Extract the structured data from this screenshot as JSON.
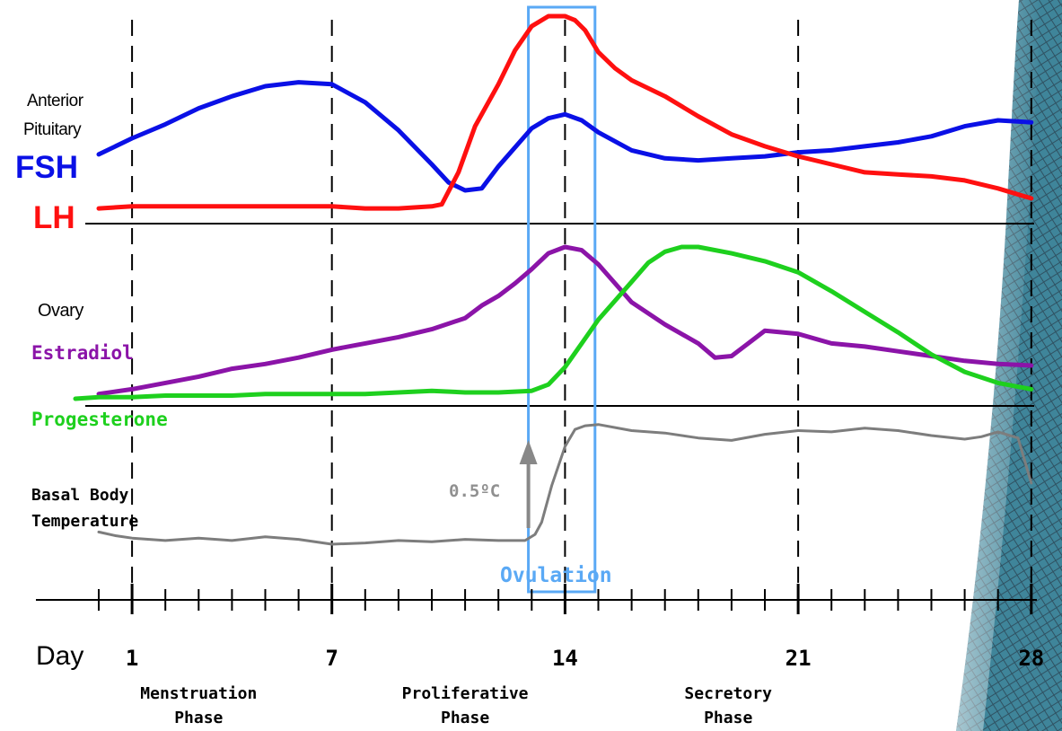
{
  "chart_data": {
    "type": "line",
    "x_unit": "day",
    "x_range": [
      0,
      28
    ],
    "day_label": "Day",
    "tick_labels": [
      {
        "day": 1,
        "text": "1"
      },
      {
        "day": 7,
        "text": "7"
      },
      {
        "day": 14,
        "text": "14"
      },
      {
        "day": 21,
        "text": "21"
      },
      {
        "day": 28,
        "text": "28"
      }
    ],
    "phases": [
      {
        "day": 3,
        "line1": "Menstruation",
        "line2": "Phase"
      },
      {
        "day": 11,
        "line1": "Proliferative",
        "line2": "Phase"
      },
      {
        "day": 18.9,
        "line1": "Secretory",
        "line2": "Phase"
      }
    ],
    "ovulation": {
      "label": "Ovulation",
      "day_start": 12.9,
      "day_end": 14.9,
      "color": "#5aa9f5"
    },
    "panels": [
      {
        "name": "Anterior Pituitary",
        "label_lines": [
          "Anterior",
          "Pituitary"
        ],
        "series": [
          {
            "name": "FSH",
            "color": "#0a10e6",
            "x": [
              0,
              1,
              2,
              3,
              4,
              5,
              6,
              7,
              8,
              9,
              10,
              10.5,
              11,
              11.5,
              12,
              13,
              13.5,
              14,
              14.5,
              15,
              16,
              17,
              18,
              19,
              20,
              21,
              22,
              23,
              24,
              25,
              26,
              27,
              28
            ],
            "y": [
              0.31,
              0.39,
              0.46,
              0.54,
              0.6,
              0.65,
              0.67,
              0.66,
              0.57,
              0.43,
              0.26,
              0.17,
              0.13,
              0.14,
              0.25,
              0.44,
              0.49,
              0.51,
              0.48,
              0.42,
              0.33,
              0.29,
              0.28,
              0.29,
              0.3,
              0.32,
              0.33,
              0.35,
              0.37,
              0.4,
              0.45,
              0.48,
              0.47
            ]
          },
          {
            "name": "LH",
            "color": "#ff1010",
            "x": [
              0,
              1,
              2,
              3,
              4,
              5,
              6,
              7,
              8,
              9,
              10,
              10.3,
              10.8,
              11.3,
              12,
              12.5,
              13,
              13.5,
              14,
              14.3,
              14.6,
              15,
              15.5,
              16,
              17,
              18,
              19,
              20,
              21,
              22,
              23,
              24,
              25,
              26,
              27,
              28
            ],
            "y": [
              0.04,
              0.05,
              0.05,
              0.05,
              0.05,
              0.05,
              0.05,
              0.05,
              0.04,
              0.04,
              0.05,
              0.06,
              0.22,
              0.45,
              0.66,
              0.83,
              0.95,
              1.0,
              1.0,
              0.98,
              0.93,
              0.82,
              0.74,
              0.68,
              0.6,
              0.5,
              0.41,
              0.35,
              0.3,
              0.26,
              0.22,
              0.21,
              0.2,
              0.18,
              0.14,
              0.09
            ]
          }
        ]
      },
      {
        "name": "Ovary",
        "label_lines": [
          "Ovary"
        ],
        "series": [
          {
            "name": "Estradiol",
            "color": "#8b14a8",
            "x": [
              0,
              1,
              2,
              3,
              4,
              5,
              6,
              7,
              8,
              9,
              10,
              11,
              11.5,
              12,
              12.5,
              13,
              13.5,
              14,
              14.5,
              15,
              15.5,
              16,
              17,
              18,
              18.5,
              19,
              19.5,
              20,
              21,
              22,
              23,
              24,
              25,
              26,
              27,
              28
            ],
            "y": [
              0.03,
              0.06,
              0.1,
              0.14,
              0.19,
              0.22,
              0.26,
              0.31,
              0.35,
              0.39,
              0.44,
              0.51,
              0.59,
              0.65,
              0.73,
              0.82,
              0.92,
              0.96,
              0.94,
              0.85,
              0.73,
              0.61,
              0.47,
              0.35,
              0.26,
              0.27,
              0.35,
              0.43,
              0.41,
              0.35,
              0.33,
              0.3,
              0.27,
              0.24,
              0.22,
              0.21
            ]
          },
          {
            "name": "Progesterone",
            "color": "#1ed01e",
            "x": [
              -0.7,
              0,
              1,
              2,
              3,
              4,
              5,
              6,
              7,
              8,
              9,
              10,
              11,
              12,
              13,
              13.5,
              14,
              14.5,
              15,
              15.5,
              16,
              16.5,
              17,
              17.5,
              18,
              19,
              20,
              21,
              22,
              23,
              24,
              25,
              26,
              27,
              28
            ],
            "y": [
              0.0,
              0.01,
              0.01,
              0.02,
              0.02,
              0.02,
              0.03,
              0.03,
              0.03,
              0.03,
              0.04,
              0.05,
              0.04,
              0.04,
              0.05,
              0.09,
              0.2,
              0.35,
              0.5,
              0.62,
              0.74,
              0.86,
              0.93,
              0.96,
              0.96,
              0.92,
              0.87,
              0.8,
              0.68,
              0.55,
              0.42,
              0.28,
              0.17,
              0.1,
              0.06
            ]
          }
        ]
      },
      {
        "name": "Basal Body Temperature",
        "label_lines": [
          "Basal Body",
          "Temperature"
        ],
        "series": [
          {
            "name": "Basal Body Temperature",
            "color": "#7d7d7d",
            "x": [
              0,
              0.5,
              1,
              2,
              3,
              4,
              5,
              6,
              7,
              8,
              9,
              10,
              11,
              12,
              12.8,
              13.1,
              13.3,
              13.6,
              14,
              14.3,
              14.6,
              15,
              16,
              17,
              18,
              19,
              20,
              21,
              22,
              23,
              24,
              25,
              26,
              26.5,
              27,
              27.6,
              28
            ],
            "y": [
              0.1,
              0.07,
              0.05,
              0.03,
              0.05,
              0.03,
              0.06,
              0.04,
              0.0,
              0.01,
              0.03,
              0.02,
              0.04,
              0.03,
              0.03,
              0.08,
              0.18,
              0.48,
              0.8,
              0.94,
              0.97,
              0.98,
              0.93,
              0.91,
              0.87,
              0.85,
              0.9,
              0.93,
              0.92,
              0.95,
              0.93,
              0.89,
              0.86,
              0.88,
              0.92,
              0.87,
              0.5
            ]
          }
        ],
        "annotation": {
          "text": "0.5ºC",
          "arrow_day": 12.9
        }
      }
    ]
  }
}
